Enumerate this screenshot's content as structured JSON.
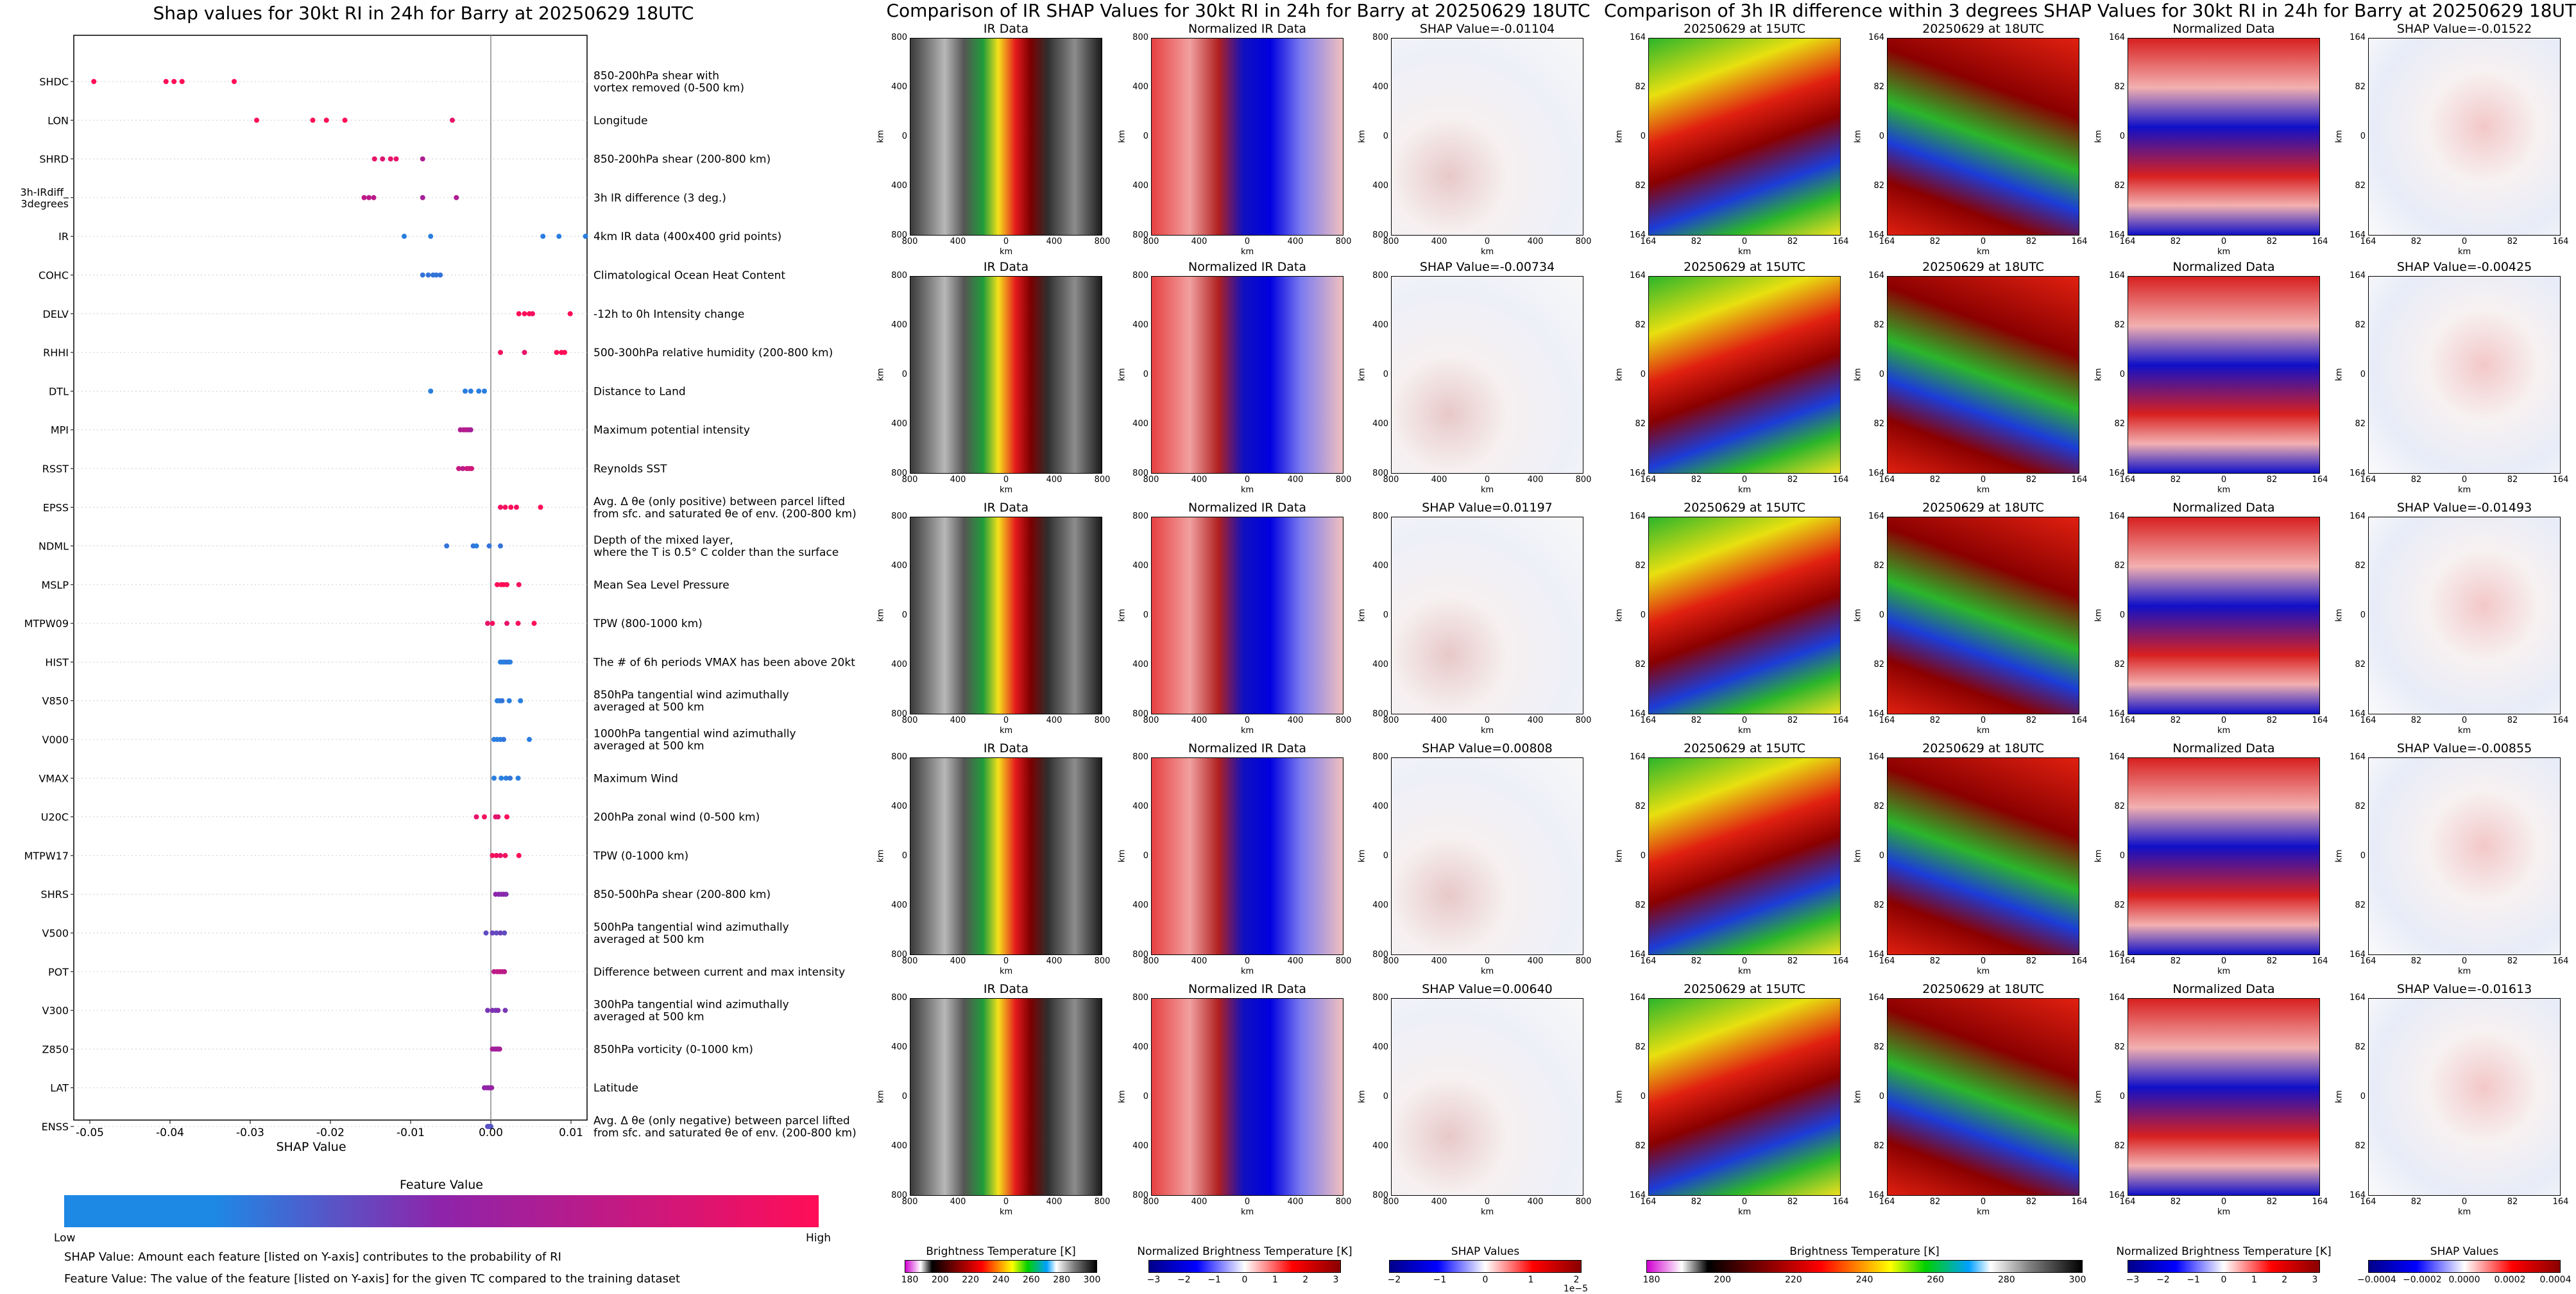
{
  "colors": {
    "low": "#1e88e5",
    "mid": "#8e24aa",
    "high": "#ff0d57",
    "shap_neg": "#0b2cc0",
    "shap_pos": "#c80b0b"
  },
  "left_title": "Shap values for 30kt RI in 24h for Barry at 20250629 18UTC",
  "middle_title": "Comparison of IR SHAP Values for 30kt RI in 24h for Barry at 20250629 18UTC",
  "right_title": "Comparison of 3h IR difference within 3 degrees SHAP Values for 30kt RI in 24h for Barry at 20250629 18UTC",
  "chart_data": {
    "type": "scatter",
    "title": "Shap values for 30kt RI in 24h for Barry at 20250629 18UTC",
    "xlabel": "SHAP Value",
    "xlim": [
      -0.052,
      0.012
    ],
    "xticks": [
      "-0.05",
      "-0.04",
      "-0.03",
      "-0.02",
      "-0.01",
      "0.00",
      "0.01"
    ],
    "xtick_values": [
      -0.05,
      -0.04,
      -0.03,
      -0.02,
      -0.01,
      0.0,
      0.01
    ],
    "colorbar": {
      "title": "Feature Value",
      "low_label": "Low",
      "high_label": "High"
    },
    "features": [
      {
        "name": "SHDC",
        "description": "850-200hPa shear with\nvortex removed (0-500 km)",
        "points": [
          [
            -0.0495,
            1.0
          ],
          [
            -0.0405,
            1.0
          ],
          [
            -0.0395,
            1.0
          ],
          [
            -0.0385,
            1.0
          ],
          [
            -0.032,
            1.0
          ]
        ]
      },
      {
        "name": "LON",
        "description": "Longitude",
        "points": [
          [
            -0.0292,
            1.0
          ],
          [
            -0.0222,
            1.0
          ],
          [
            -0.0205,
            1.0
          ],
          [
            -0.0182,
            1.0
          ],
          [
            -0.0048,
            0.9
          ]
        ]
      },
      {
        "name": "SHRD",
        "description": "850-200hPa shear (200-800 km)",
        "points": [
          [
            -0.0145,
            0.9
          ],
          [
            -0.0135,
            0.85
          ],
          [
            -0.0125,
            0.9
          ],
          [
            -0.0118,
            0.9
          ],
          [
            -0.0085,
            0.65
          ]
        ]
      },
      {
        "name": "3h-IRdiff_\n3degrees",
        "description": "3h IR difference (3 deg.)",
        "points": [
          [
            -0.0158,
            0.7
          ],
          [
            -0.0152,
            0.7
          ],
          [
            -0.0146,
            0.7
          ],
          [
            -0.0085,
            0.6
          ],
          [
            -0.0043,
            0.65
          ]
        ]
      },
      {
        "name": "IR",
        "description": "4km IR data (400x400 grid points)",
        "points": [
          [
            -0.0108,
            0.05
          ],
          [
            -0.0075,
            0.05
          ],
          [
            0.0065,
            0.05
          ],
          [
            0.0085,
            0.05
          ],
          [
            0.0118,
            0.05
          ]
        ]
      },
      {
        "name": "COHC",
        "description": "Climatological Ocean Heat Content",
        "points": [
          [
            -0.0085,
            0.1
          ],
          [
            -0.0078,
            0.1
          ],
          [
            -0.0072,
            0.1
          ],
          [
            -0.0068,
            0.1
          ],
          [
            -0.0063,
            0.1
          ]
        ]
      },
      {
        "name": "DELV",
        "description": "-12h to 0h Intensity change",
        "points": [
          [
            0.0035,
            1.0
          ],
          [
            0.0042,
            1.0
          ],
          [
            0.0048,
            1.0
          ],
          [
            0.0052,
            0.95
          ],
          [
            0.0099,
            1.0
          ]
        ]
      },
      {
        "name": "RHHI",
        "description": "500-300hPa relative humidity (200-800 km)",
        "points": [
          [
            0.0012,
            0.95
          ],
          [
            0.0042,
            0.9
          ],
          [
            0.0082,
            1.0
          ],
          [
            0.0088,
            1.0
          ],
          [
            0.0092,
            1.0
          ]
        ]
      },
      {
        "name": "DTL",
        "description": "Distance to Land",
        "points": [
          [
            -0.0075,
            0.05
          ],
          [
            -0.0032,
            0.05
          ],
          [
            -0.0025,
            0.05
          ],
          [
            -0.0015,
            0.05
          ],
          [
            -0.0008,
            0.05
          ]
        ]
      },
      {
        "name": "MPI",
        "description": "Maximum potential intensity",
        "points": [
          [
            -0.0038,
            0.65
          ],
          [
            -0.0034,
            0.65
          ],
          [
            -0.0031,
            0.7
          ],
          [
            -0.0028,
            0.65
          ],
          [
            -0.0025,
            0.6
          ]
        ]
      },
      {
        "name": "RSST",
        "description": "Reynolds SST",
        "points": [
          [
            -0.004,
            0.75
          ],
          [
            -0.0035,
            0.7
          ],
          [
            -0.003,
            0.8
          ],
          [
            -0.0027,
            0.75
          ],
          [
            -0.0024,
            0.8
          ]
        ]
      },
      {
        "name": "EPSS",
        "description": "Avg. Δ θe (only positive) between parcel lifted\nfrom sfc. and saturated θe of env. (200-800 km)",
        "points": [
          [
            0.0012,
            0.95
          ],
          [
            0.0018,
            0.95
          ],
          [
            0.0025,
            1.0
          ],
          [
            0.0032,
            0.95
          ],
          [
            0.0062,
            1.0
          ]
        ]
      },
      {
        "name": "NDML",
        "description": "Depth of the mixed layer,\nwhere the T is 0.5° C colder than the surface",
        "points": [
          [
            -0.0055,
            0.1
          ],
          [
            -0.0022,
            0.1
          ],
          [
            -0.0018,
            0.05
          ],
          [
            -0.0002,
            0.1
          ],
          [
            0.0012,
            0.1
          ]
        ]
      },
      {
        "name": "MSLP",
        "description": "Mean Sea Level Pressure",
        "points": [
          [
            0.0008,
            1.0
          ],
          [
            0.0013,
            1.0
          ],
          [
            0.0016,
            1.0
          ],
          [
            0.002,
            1.0
          ],
          [
            0.0035,
            0.95
          ]
        ]
      },
      {
        "name": "MTPW09",
        "description": "TPW (800-1000 km)",
        "points": [
          [
            -0.0004,
            0.9
          ],
          [
            0.0002,
            0.95
          ],
          [
            0.002,
            0.9
          ],
          [
            0.0034,
            0.95
          ],
          [
            0.0054,
            1.0
          ]
        ]
      },
      {
        "name": "HIST",
        "description": "The # of 6h periods VMAX has been above 20kt",
        "points": [
          [
            0.0012,
            0.05
          ],
          [
            0.0015,
            0.05
          ],
          [
            0.0018,
            0.05
          ],
          [
            0.0021,
            0.1
          ],
          [
            0.0024,
            0.05
          ]
        ]
      },
      {
        "name": "V850",
        "description": "850hPa tangential wind azimuthally\naveraged at 500 km",
        "points": [
          [
            0.0008,
            0.05
          ],
          [
            0.0011,
            0.05
          ],
          [
            0.0014,
            0.1
          ],
          [
            0.0023,
            0.05
          ],
          [
            0.0037,
            0.05
          ]
        ]
      },
      {
        "name": "V000",
        "description": "1000hPa tangential wind azimuthally\naveraged at 500 km",
        "points": [
          [
            0.0004,
            0.05
          ],
          [
            0.0008,
            0.05
          ],
          [
            0.0012,
            0.05
          ],
          [
            0.0016,
            0.1
          ],
          [
            0.0048,
            0.05
          ]
        ]
      },
      {
        "name": "VMAX",
        "description": "Maximum Wind",
        "points": [
          [
            0.0004,
            0.05
          ],
          [
            0.0013,
            0.05
          ],
          [
            0.0019,
            0.05
          ],
          [
            0.0024,
            0.1
          ],
          [
            0.0034,
            0.05
          ]
        ]
      },
      {
        "name": "U20C",
        "description": "200hPa zonal wind (0-500 km)",
        "points": [
          [
            -0.0018,
            0.9
          ],
          [
            -0.0008,
            0.95
          ],
          [
            0.0006,
            0.9
          ],
          [
            0.0009,
            0.85
          ],
          [
            0.002,
            1.0
          ]
        ]
      },
      {
        "name": "MTPW17",
        "description": "TPW (0-1000 km)",
        "points": [
          [
            0.0002,
            0.95
          ],
          [
            0.0007,
            0.95
          ],
          [
            0.0012,
            0.9
          ],
          [
            0.0018,
            0.95
          ],
          [
            0.0035,
            1.0
          ]
        ]
      },
      {
        "name": "SHRS",
        "description": "850-500hPa shear (200-800 km)",
        "points": [
          [
            0.0006,
            0.5
          ],
          [
            0.001,
            0.5
          ],
          [
            0.0013,
            0.45
          ],
          [
            0.0016,
            0.5
          ],
          [
            0.0019,
            0.45
          ]
        ]
      },
      {
        "name": "V500",
        "description": "500hPa tangential wind azimuthally\naveraged at 500 km",
        "points": [
          [
            -0.0006,
            0.3
          ],
          [
            0.0002,
            0.35
          ],
          [
            0.0007,
            0.3
          ],
          [
            0.0012,
            0.35
          ],
          [
            0.0017,
            0.3
          ]
        ]
      },
      {
        "name": "POT",
        "description": "Difference between current and max intensity",
        "points": [
          [
            0.0004,
            0.7
          ],
          [
            0.0008,
            0.7
          ],
          [
            0.0011,
            0.75
          ],
          [
            0.0014,
            0.7
          ],
          [
            0.0017,
            0.7
          ]
        ]
      },
      {
        "name": "V300",
        "description": "300hPa tangential wind azimuthally\naveraged at 500 km",
        "points": [
          [
            -0.0004,
            0.4
          ],
          [
            0.0002,
            0.45
          ],
          [
            0.0006,
            0.4
          ],
          [
            0.0009,
            0.45
          ],
          [
            0.0018,
            0.4
          ]
        ]
      },
      {
        "name": "Z850",
        "description": "850hPa vorticity (0-1000 km)",
        "points": [
          [
            0.0002,
            0.6
          ],
          [
            0.0005,
            0.6
          ],
          [
            0.0007,
            0.55
          ],
          [
            0.0009,
            0.6
          ],
          [
            0.0011,
            0.6
          ]
        ]
      },
      {
        "name": "LAT",
        "description": "Latitude",
        "points": [
          [
            -0.0008,
            0.5
          ],
          [
            -0.0005,
            0.55
          ],
          [
            -0.0003,
            0.5
          ],
          [
            -0.0001,
            0.5
          ],
          [
            0.0001,
            0.55
          ]
        ]
      },
      {
        "name": "ENSS",
        "description": "Avg. Δ θe (only negative) between parcel lifted\nfrom sfc. and saturated θe of env. (200-800 km)",
        "points": [
          [
            -0.0004,
            0.25
          ],
          [
            -0.0003,
            0.25
          ],
          [
            -0.0002,
            0.3
          ],
          [
            -0.0001,
            0.25
          ],
          [
            0.0,
            0.25
          ]
        ]
      }
    ]
  },
  "notes": {
    "shap": "SHAP Value: Amount each feature [listed on Y-axis] contributes to the probability of RI",
    "feature": "Feature Value: The value of the feature [listed on Y-axis] for the given TC compared to the training dataset"
  },
  "ir_panels": {
    "col_titles": [
      "IR Data",
      "Normalized IR Data"
    ],
    "shap_titles": [
      "SHAP Value=-0.01104",
      "SHAP Value=-0.00734",
      "SHAP Value=0.01197",
      "SHAP Value=0.00808",
      "SHAP Value=0.00640"
    ],
    "y_ticks": [
      "800",
      "400",
      "0",
      "400",
      "800"
    ],
    "x_ticks": [
      "800",
      "400",
      "0",
      "400",
      "800"
    ],
    "axis_label": "km",
    "colorbars": [
      {
        "title": "Brightness Temperature [K]",
        "ticks": [
          "180",
          "200",
          "220",
          "240",
          "260",
          "280",
          "300"
        ]
      },
      {
        "title": "Normalized Brightness Temperature [K]",
        "ticks": [
          "−3",
          "−2",
          "−1",
          "0",
          "1",
          "2",
          "3"
        ]
      },
      {
        "title": "SHAP Values",
        "ticks": [
          "−2",
          "−1",
          "0",
          "1",
          "2"
        ],
        "offset": "1e−5"
      }
    ]
  },
  "diff_panels": {
    "col_titles": [
      "20250629 at 15UTC",
      "20250629 at 18UTC",
      "Normalized Data"
    ],
    "shap_titles": [
      "SHAP Value=-0.01522",
      "SHAP Value=-0.00425",
      "SHAP Value=-0.01493",
      "SHAP Value=-0.00855",
      "SHAP Value=-0.01613"
    ],
    "y_ticks": [
      "164",
      "82",
      "0",
      "82",
      "164"
    ],
    "x_ticks": [
      "164",
      "82",
      "0",
      "82",
      "164"
    ],
    "axis_label": "km",
    "colorbars": [
      {
        "title": "Brightness Temperature [K]",
        "ticks": [
          "180",
          "200",
          "220",
          "240",
          "260",
          "280",
          "300"
        ]
      },
      {
        "title": "Normalized Brightness Temperature [K]",
        "ticks": [
          "−3",
          "−2",
          "−1",
          "0",
          "1",
          "2",
          "3"
        ]
      },
      {
        "title": "SHAP Values",
        "ticks": [
          "−0.0004",
          "−0.0002",
          "0.0000",
          "0.0002",
          "0.0004"
        ]
      }
    ]
  }
}
